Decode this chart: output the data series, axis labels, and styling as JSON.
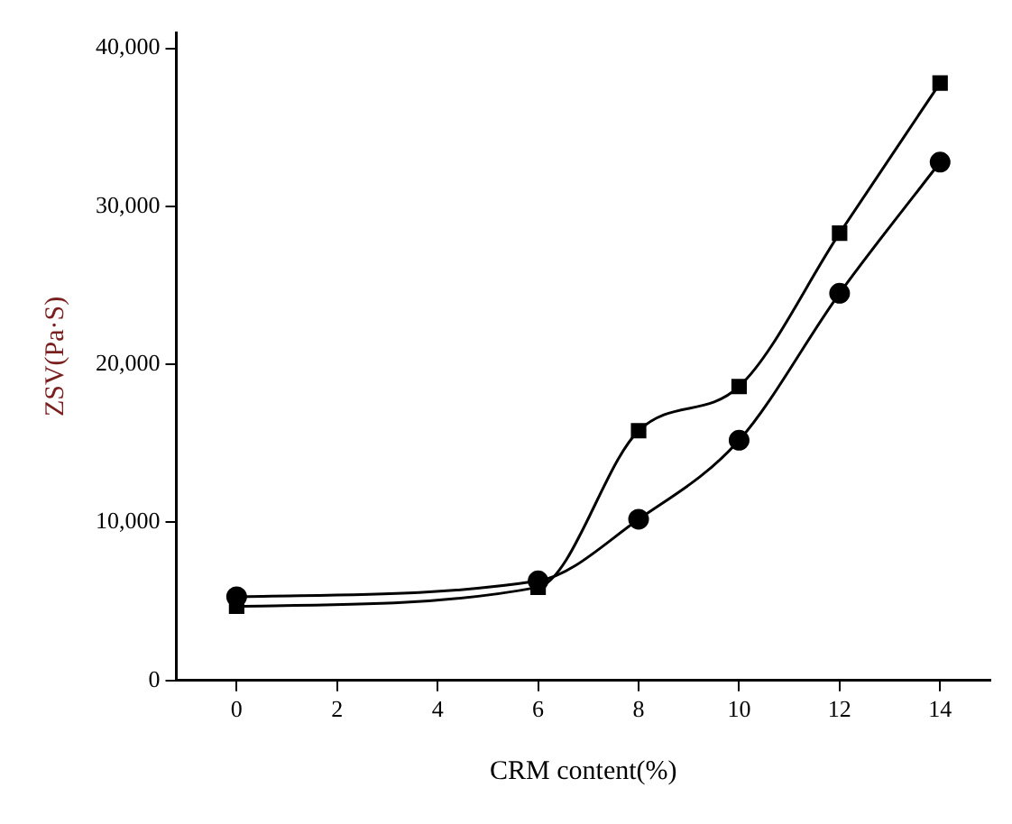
{
  "chart_data": {
    "type": "line",
    "xlabel": "CRM content(%)",
    "ylabel": "ZSV(Pa·S)",
    "x": [
      0,
      6,
      8,
      10,
      12,
      14
    ],
    "series": [
      {
        "color": "#000000",
        "marker": "square",
        "values": [
          4700,
          5900,
          15800,
          18600,
          28300,
          37800
        ]
      },
      {
        "color": "#000000",
        "marker": "circle",
        "values": [
          5300,
          6300,
          10200,
          15200,
          24500,
          32800
        ]
      }
    ],
    "xlim": [
      -1.2,
      15
    ],
    "xticks": [
      0,
      2,
      4,
      6,
      8,
      10,
      12,
      14
    ],
    "ylim": [
      0,
      41000
    ],
    "yticks": [
      0,
      {
        "value": 10000,
        "label": "10,000"
      },
      {
        "value": 20000,
        "label": "20,000"
      },
      {
        "value": 30000,
        "label": "30,000"
      },
      {
        "value": 40000,
        "label": "40,000"
      }
    ],
    "grid": false,
    "legend": false,
    "line_style": "solid"
  }
}
